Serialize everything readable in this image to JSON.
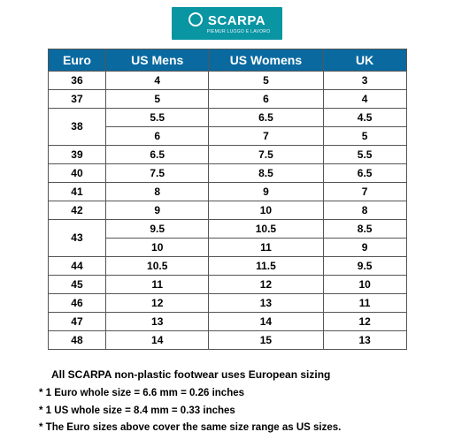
{
  "brand": {
    "name": "SCARPA",
    "tagline": "PIEMUR LUOGO E LAVORO",
    "logo_bg": "#0a95a3",
    "logo_fg": "#ffffff"
  },
  "table": {
    "header_bg": "#0a6aa0",
    "header_fg": "#ffffff",
    "border_color": "#555555",
    "cell_fontsize": 12,
    "header_fontsize": 14,
    "columns": [
      "Euro",
      "US Mens",
      "US Womens",
      "UK"
    ],
    "rows": [
      {
        "euro": "36",
        "usm": "4",
        "usw": "5",
        "uk": "3",
        "span": 1
      },
      {
        "euro": "37",
        "usm": "5",
        "usw": "6",
        "uk": "4",
        "span": 1
      },
      {
        "euro": "38",
        "usm": "5.5",
        "usw": "6.5",
        "uk": "4.5",
        "span": 2
      },
      {
        "euro": "",
        "usm": "6",
        "usw": "7",
        "uk": "5",
        "span": 0
      },
      {
        "euro": "39",
        "usm": "6.5",
        "usw": "7.5",
        "uk": "5.5",
        "span": 1
      },
      {
        "euro": "40",
        "usm": "7.5",
        "usw": "8.5",
        "uk": "6.5",
        "span": 1
      },
      {
        "euro": "41",
        "usm": "8",
        "usw": "9",
        "uk": "7",
        "span": 1
      },
      {
        "euro": "42",
        "usm": "9",
        "usw": "10",
        "uk": "8",
        "span": 1
      },
      {
        "euro": "43",
        "usm": "9.5",
        "usw": "10.5",
        "uk": "8.5",
        "span": 2
      },
      {
        "euro": "",
        "usm": "10",
        "usw": "11",
        "uk": "9",
        "span": 0
      },
      {
        "euro": "44",
        "usm": "10.5",
        "usw": "11.5",
        "uk": "9.5",
        "span": 1
      },
      {
        "euro": "45",
        "usm": "11",
        "usw": "12",
        "uk": "10",
        "span": 1
      },
      {
        "euro": "46",
        "usm": "12",
        "usw": "13",
        "uk": "11",
        "span": 1
      },
      {
        "euro": "47",
        "usm": "13",
        "usw": "14",
        "uk": "12",
        "span": 1
      },
      {
        "euro": "48",
        "usm": "14",
        "usw": "15",
        "uk": "13",
        "span": 1
      }
    ]
  },
  "notes": {
    "headline": "All SCARPA non-plastic footwear uses European sizing",
    "lines": [
      "*  1 Euro whole size = 6.6 mm = 0.26 inches",
      "*  1 US whole size = 8.4 mm = 0.33 inches",
      "*  The Euro sizes above cover the same size range as  US sizes."
    ]
  }
}
